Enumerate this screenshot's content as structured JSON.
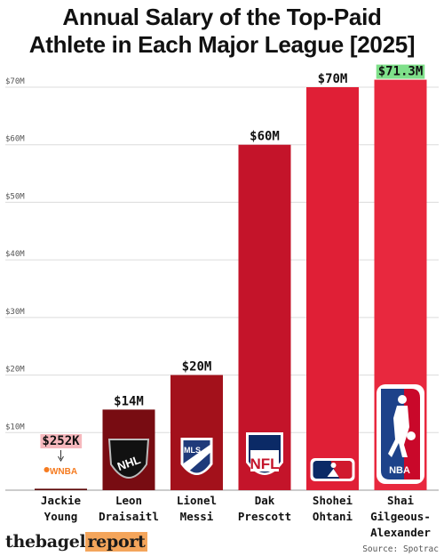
{
  "title_line1": "Annual Salary of the Top-Paid",
  "title_line2": "Athlete in Each Major League [2025]",
  "brand": {
    "part1": "thebagel",
    "part2": "report"
  },
  "source": "Source: Spotrac",
  "colors": {
    "grid": "#dcdcdc",
    "green_label": "#7fe08a",
    "pink_label": "#f6b8bd"
  },
  "chart_data": {
    "type": "bar",
    "categories": [
      [
        "Jackie",
        "Young"
      ],
      [
        "Leon",
        "Draisaitl"
      ],
      [
        "Lionel",
        "Messi"
      ],
      [
        "Dak",
        "Prescott"
      ],
      [
        "Shohei",
        "Ohtani"
      ],
      [
        "Shai",
        "Gilgeous-",
        "Alexander"
      ]
    ],
    "values": [
      0.252,
      14,
      20,
      60,
      70,
      71.3
    ],
    "value_labels": [
      "$252K",
      "$14M",
      "$20M",
      "$60M",
      "$70M",
      "$71.3M"
    ],
    "league_logos": [
      "WNBA",
      "NHL",
      "MLS",
      "NFL",
      "MLB",
      "NBA"
    ],
    "bar_colors": [
      "#5e0a0a",
      "#780c12",
      "#a3111b",
      "#c4142a",
      "#e01f36",
      "#e8283e"
    ],
    "ylim": [
      0,
      70
    ],
    "yticks": [
      10,
      20,
      30,
      40,
      50,
      60,
      70
    ],
    "ytick_labels": [
      "$10M",
      "$20M",
      "$30M",
      "$40M",
      "$50M",
      "$60M",
      "$70M"
    ],
    "grid": true
  }
}
